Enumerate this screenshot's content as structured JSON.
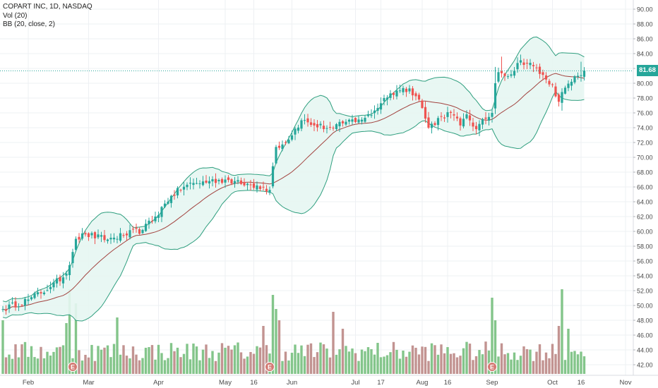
{
  "legend": {
    "symbol": "COPART INC, 1D, NASDAQ",
    "volume": "Vol (20)",
    "bollinger": "BB (20, close, 2)"
  },
  "last_price_label": "81.68",
  "colors": {
    "up": "#26a69a",
    "down": "#ef5350",
    "volume_up": "#83c58a",
    "volume_down": "#c29391",
    "band": "#2e9e7e",
    "band_fill": "#e6f6f2",
    "basis": "#a2433f",
    "price_line": "#26a69a",
    "grid": "#eef0f3",
    "axis_text": "#4a4a4a"
  },
  "chart_data": {
    "type": "candlestick",
    "title": "COPART INC, 1D, NASDAQ",
    "indicators": [
      "Vol (20)",
      "BB (20, close, 2)"
    ],
    "y_axis": {
      "range": [
        41,
        91
      ],
      "ticks": [
        90.0,
        88.0,
        86.0,
        84.0,
        82.0,
        80.0,
        78.0,
        76.0,
        74.0,
        72.0,
        70.0,
        68.0,
        66.0,
        64.0,
        62.0,
        60.0,
        58.0,
        56.0,
        54.0,
        52.0,
        50.0,
        48.0,
        46.0,
        44.0,
        42.0
      ],
      "tick_labels": [
        "90.00",
        "88.00",
        "86.00",
        "84.00",
        "82.00",
        "80.00",
        "78.00",
        "76.00",
        "74.00",
        "72.00",
        "70.00",
        "68.00",
        "66.00",
        "64.00",
        "62.00",
        "60.00",
        "58.00",
        "56.00",
        "54.00",
        "52.00",
        "50.00",
        "48.00",
        "46.00",
        "44.00",
        "42.00"
      ],
      "position": "right"
    },
    "x_axis": {
      "ticks": [
        {
          "label": "Feb",
          "bar": 8
        },
        {
          "label": "Mar",
          "bar": 27
        },
        {
          "label": "Apr",
          "bar": 49
        },
        {
          "label": "May",
          "bar": 70
        },
        {
          "label": "16",
          "bar": 79
        },
        {
          "label": "Jun",
          "bar": 91
        },
        {
          "label": "Jul",
          "bar": 111
        },
        {
          "label": "17",
          "bar": 119
        },
        {
          "label": "Aug",
          "bar": 132
        },
        {
          "label": "16",
          "bar": 140
        },
        {
          "label": "Sep",
          "bar": 154
        },
        {
          "label": "Oct",
          "bar": 173
        },
        {
          "label": "16",
          "bar": 182
        },
        {
          "label": "Nov",
          "bar": 196
        }
      ]
    },
    "last_price": 81.68,
    "earnings_markers": [
      {
        "label": "E",
        "bar": 22
      },
      {
        "label": "E",
        "bar": 84
      },
      {
        "label": "E",
        "bar": 154
      }
    ],
    "milestones": [
      {
        "bar": 0,
        "close": 49.5
      },
      {
        "bar": 8,
        "close": 50.8
      },
      {
        "bar": 15,
        "close": 52.5
      },
      {
        "bar": 20,
        "close": 54.3
      },
      {
        "bar": 23,
        "close": 59.0
      },
      {
        "bar": 26,
        "close": 59.6
      },
      {
        "bar": 33,
        "close": 58.9
      },
      {
        "bar": 38,
        "close": 59.5
      },
      {
        "bar": 44,
        "close": 60.2
      },
      {
        "bar": 48,
        "close": 62.0
      },
      {
        "bar": 53,
        "close": 64.8
      },
      {
        "bar": 58,
        "close": 66.3
      },
      {
        "bar": 65,
        "close": 66.8
      },
      {
        "bar": 70,
        "close": 67.0
      },
      {
        "bar": 75,
        "close": 66.4
      },
      {
        "bar": 80,
        "close": 66.2
      },
      {
        "bar": 84,
        "close": 65.6
      },
      {
        "bar": 85,
        "close": 68.8
      },
      {
        "bar": 86,
        "close": 71.4
      },
      {
        "bar": 89,
        "close": 72.0
      },
      {
        "bar": 94,
        "close": 75.0
      },
      {
        "bar": 98,
        "close": 74.3
      },
      {
        "bar": 104,
        "close": 73.9
      },
      {
        "bar": 108,
        "close": 74.8
      },
      {
        "bar": 112,
        "close": 75.1
      },
      {
        "bar": 116,
        "close": 75.7
      },
      {
        "bar": 120,
        "close": 78.0
      },
      {
        "bar": 124,
        "close": 79.0
      },
      {
        "bar": 128,
        "close": 79.3
      },
      {
        "bar": 131,
        "close": 77.8
      },
      {
        "bar": 134,
        "close": 74.0
      },
      {
        "bar": 138,
        "close": 75.5
      },
      {
        "bar": 141,
        "close": 76.0
      },
      {
        "bar": 144,
        "close": 74.3
      },
      {
        "bar": 146,
        "close": 75.8
      },
      {
        "bar": 149,
        "close": 73.8
      },
      {
        "bar": 152,
        "close": 75.2
      },
      {
        "bar": 154,
        "close": 76.0
      },
      {
        "bar": 155,
        "close": 80.0
      },
      {
        "bar": 156,
        "close": 81.5
      },
      {
        "bar": 160,
        "close": 81.2
      },
      {
        "bar": 163,
        "close": 83.1
      },
      {
        "bar": 167,
        "close": 82.3
      },
      {
        "bar": 171,
        "close": 80.5
      },
      {
        "bar": 173,
        "close": 79.8
      },
      {
        "bar": 175,
        "close": 77.5
      },
      {
        "bar": 177,
        "close": 79.4
      },
      {
        "bar": 179,
        "close": 80.2
      },
      {
        "bar": 181,
        "close": 81.0
      },
      {
        "bar": 183,
        "close": 81.68
      }
    ],
    "volume_spikes": [
      {
        "bar": 0,
        "vol": 1.9
      },
      {
        "bar": 20,
        "vol": 1.8
      },
      {
        "bar": 21,
        "vol": 3.0
      },
      {
        "bar": 23,
        "vol": 2.5
      },
      {
        "bar": 36,
        "vol": 2.0
      },
      {
        "bar": 82,
        "vol": 1.7
      },
      {
        "bar": 85,
        "vol": 2.8
      },
      {
        "bar": 86,
        "vol": 2.3
      },
      {
        "bar": 87,
        "vol": 1.9
      },
      {
        "bar": 104,
        "vol": 2.2
      },
      {
        "bar": 107,
        "vol": 1.6
      },
      {
        "bar": 154,
        "vol": 2.7
      },
      {
        "bar": 155,
        "vol": 1.9
      },
      {
        "bar": 175,
        "vol": 1.7
      },
      {
        "bar": 176,
        "vol": 3.0
      },
      {
        "bar": 178,
        "vol": 1.6
      }
    ],
    "total_bars": 184,
    "bb_period": 20,
    "bb_stddev": 2
  }
}
